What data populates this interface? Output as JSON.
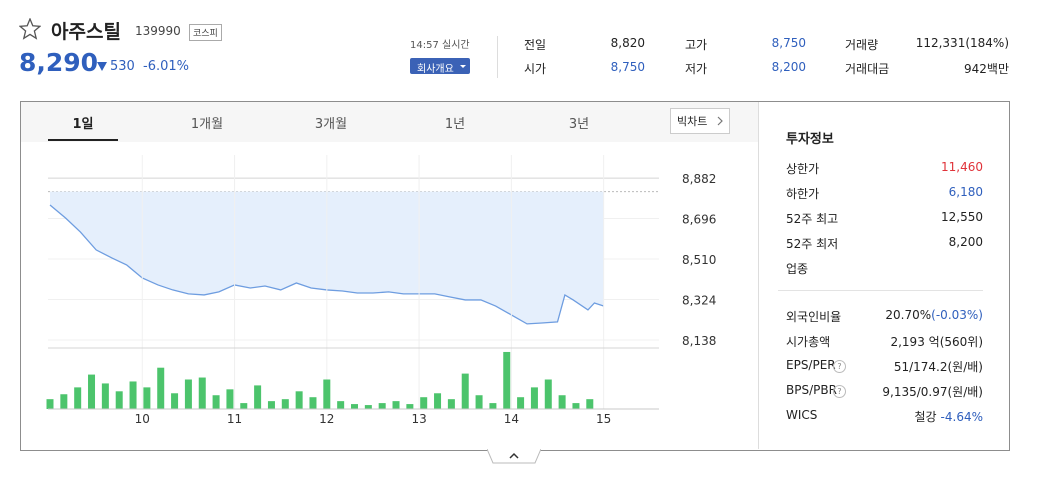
{
  "header": {
    "name": "아주스틸",
    "code": "139990",
    "market": "코스피",
    "price": "8,290",
    "change": "530",
    "change_pct": "-6.01%",
    "time": "14:57 실시간",
    "company_button": "회사개요"
  },
  "quote": [
    [
      {
        "label": "전일",
        "value": "8,820"
      },
      {
        "label": "고가",
        "value": "8,750"
      },
      {
        "label": "거래량",
        "value": "112,331(184%)"
      }
    ],
    [
      {
        "label": "시가",
        "value": "8,750"
      },
      {
        "label": "저가",
        "value": "8,200"
      },
      {
        "label": "거래대금",
        "value": "942백만"
      }
    ]
  ],
  "tabs": [
    "1일",
    "1개월",
    "3개월",
    "1년",
    "3년"
  ],
  "big_chart": "빅차트",
  "chart_data": [
    {
      "type": "line",
      "xlim": [
        9,
        15.6
      ],
      "ylim": [
        8115,
        8988
      ],
      "yticks": [
        {
          "value": 8882,
          "label": "8,882"
        },
        {
          "value": 8696,
          "label": "8,696"
        },
        {
          "value": 8510,
          "label": "8,510"
        },
        {
          "value": 8324,
          "label": "8,324"
        },
        {
          "value": 8138,
          "label": "8,138"
        }
      ],
      "reference": 8820,
      "grid": true,
      "series": [
        {
          "color": "#6e9de0",
          "x": [
            9.0,
            9.17,
            9.33,
            9.5,
            9.67,
            9.83,
            10.0,
            10.17,
            10.33,
            10.5,
            10.67,
            10.83,
            11.0,
            11.17,
            11.33,
            11.5,
            11.67,
            11.83,
            12.0,
            12.17,
            12.33,
            12.5,
            12.67,
            12.83,
            13.0,
            13.17,
            13.33,
            13.5,
            13.67,
            13.83,
            14.0,
            14.17,
            14.33,
            14.5,
            14.58,
            14.67,
            14.83,
            14.9,
            15.0
          ],
          "values": [
            8758,
            8698,
            8634,
            8552,
            8515,
            8483,
            8423,
            8391,
            8368,
            8350,
            8345,
            8359,
            8391,
            8377,
            8386,
            8368,
            8400,
            8377,
            8368,
            8363,
            8354,
            8354,
            8359,
            8350,
            8350,
            8350,
            8336,
            8322,
            8322,
            8294,
            8253,
            8212,
            8216,
            8221,
            8345,
            8322,
            8276,
            8308,
            8294
          ]
        }
      ]
    },
    {
      "type": "bar",
      "xlim": [
        9,
        15.6
      ],
      "ylim": [
        0,
        60
      ],
      "xticks": [
        10,
        11,
        12,
        13,
        14,
        15
      ],
      "grid": true,
      "color": "#4cc46c",
      "x": [
        9.0,
        9.15,
        9.3,
        9.45,
        9.6,
        9.75,
        9.9,
        10.05,
        10.2,
        10.35,
        10.5,
        10.65,
        10.8,
        10.95,
        11.1,
        11.25,
        11.4,
        11.55,
        11.7,
        11.85,
        12.0,
        12.15,
        12.3,
        12.45,
        12.6,
        12.75,
        12.9,
        13.05,
        13.2,
        13.35,
        13.5,
        13.65,
        13.8,
        13.95,
        14.1,
        14.25,
        14.4,
        14.55,
        14.7,
        14.85
      ],
      "values": [
        10,
        15,
        22,
        35,
        26,
        18,
        28,
        22,
        42,
        16,
        30,
        32,
        14,
        20,
        6,
        24,
        8,
        10,
        18,
        12,
        30,
        8,
        5,
        4,
        6,
        8,
        5,
        12,
        16,
        10,
        36,
        14,
        6,
        58,
        12,
        22,
        30,
        14,
        6,
        10
      ]
    }
  ],
  "info": {
    "title": "투자정보",
    "rows1": [
      {
        "label": "상한가",
        "value": "11,460"
      },
      {
        "label": "하한가",
        "value": "6,180"
      },
      {
        "label": "52주 최고",
        "value": "12,550"
      },
      {
        "label": "52주 최저",
        "value": "8,200"
      },
      {
        "label": "업종"
      }
    ],
    "rows2": [
      {
        "label": "외국인비율",
        "value": "20.70%",
        "extra": "(-0.03%)"
      },
      {
        "label": "시가총액",
        "value": "2,193 억",
        "extra": "(560위)"
      },
      {
        "label": "EPS/PER",
        "help": "?",
        "value": "51/174.2",
        "extra": "(원/배)"
      },
      {
        "label": "BPS/PBR",
        "help": "?",
        "value": "9,135/0.97",
        "extra": "(원/배)"
      },
      {
        "label": "WICS",
        "value": "철강",
        "extra": "-4.64%"
      }
    ]
  }
}
